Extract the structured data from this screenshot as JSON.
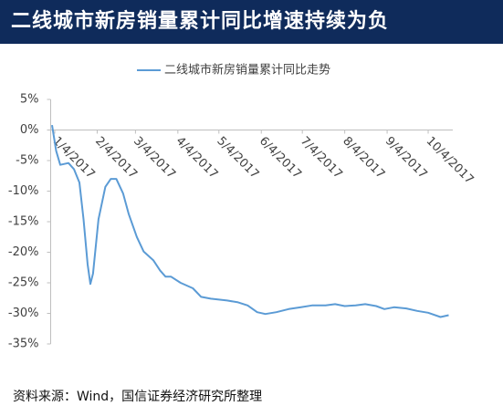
{
  "header": {
    "title": "二线城市新房销量累计同比增速持续为负"
  },
  "chart_data": {
    "type": "line",
    "x": [
      "2017-01-02",
      "2017-01-05",
      "2017-01-08",
      "2017-01-14",
      "2017-01-18",
      "2017-01-22",
      "2017-01-25",
      "2017-01-28",
      "2017-01-30",
      "2017-02-01",
      "2017-02-05",
      "2017-02-10",
      "2017-02-14",
      "2017-02-18",
      "2017-02-23",
      "2017-02-27",
      "2017-03-05",
      "2017-03-10",
      "2017-03-17",
      "2017-03-22",
      "2017-03-26",
      "2017-03-30",
      "2017-04-06",
      "2017-04-15",
      "2017-04-21",
      "2017-04-28",
      "2017-05-10",
      "2017-05-18",
      "2017-05-25",
      "2017-06-01",
      "2017-06-07",
      "2017-06-15",
      "2017-06-24",
      "2017-07-03",
      "2017-07-11",
      "2017-07-21",
      "2017-07-28",
      "2017-08-04",
      "2017-08-12",
      "2017-08-19",
      "2017-08-27",
      "2017-09-02",
      "2017-09-09",
      "2017-09-18",
      "2017-09-26",
      "2017-10-04",
      "2017-10-13",
      "2017-10-19"
    ],
    "series": [
      {
        "name": "二线城市新房销量累计同比走势",
        "color": "#5b9bd5",
        "values": [
          0.8,
          -3.4,
          -5.7,
          -5.4,
          -6.4,
          -8.6,
          -14.6,
          -22,
          -25.2,
          -23.5,
          -14.6,
          -9.3,
          -8.0,
          -8.0,
          -10.4,
          -13.7,
          -17.5,
          -19.9,
          -21.3,
          -23,
          -24,
          -24,
          -25,
          -25.9,
          -27.3,
          -27.6,
          -27.9,
          -28.2,
          -28.7,
          -29.8,
          -30.1,
          -29.8,
          -29.3,
          -29,
          -28.7,
          -28.7,
          -28.5,
          -28.8,
          -28.7,
          -28.5,
          -28.8,
          -29.3,
          -29,
          -29.2,
          -29.6,
          -29.9,
          -30.6,
          -30.3
        ]
      }
    ],
    "xlim": [
      "2017-01-01",
      "2017-10-22"
    ],
    "xticks": [
      {
        "value": "2017-01-04",
        "label": "1/4/2017"
      },
      {
        "value": "2017-02-04",
        "label": "2/4/2017"
      },
      {
        "value": "2017-03-04",
        "label": "3/4/2017"
      },
      {
        "value": "2017-04-04",
        "label": "4/4/2017"
      },
      {
        "value": "2017-05-04",
        "label": "5/4/2017"
      },
      {
        "value": "2017-06-04",
        "label": "6/4/2017"
      },
      {
        "value": "2017-07-04",
        "label": "7/4/2017"
      },
      {
        "value": "2017-08-04",
        "label": "8/4/2017"
      },
      {
        "value": "2017-09-04",
        "label": "9/4/2017"
      },
      {
        "value": "2017-10-04",
        "label": "10/4/2017"
      }
    ],
    "ylim": [
      -35,
      5
    ],
    "yticks": [
      {
        "value": 5,
        "label": "5%"
      },
      {
        "value": 0,
        "label": "0%"
      },
      {
        "value": -5,
        "label": "-5%"
      },
      {
        "value": -10,
        "label": "-10%"
      },
      {
        "value": -15,
        "label": "-15%"
      },
      {
        "value": -20,
        "label": "-20%"
      },
      {
        "value": -25,
        "label": "-25%"
      },
      {
        "value": -30,
        "label": "-30%"
      },
      {
        "value": -35,
        "label": "-35%"
      }
    ],
    "legend": "top"
  },
  "footer": {
    "source": "资料来源：Wind，国信证券经济研究所整理"
  }
}
